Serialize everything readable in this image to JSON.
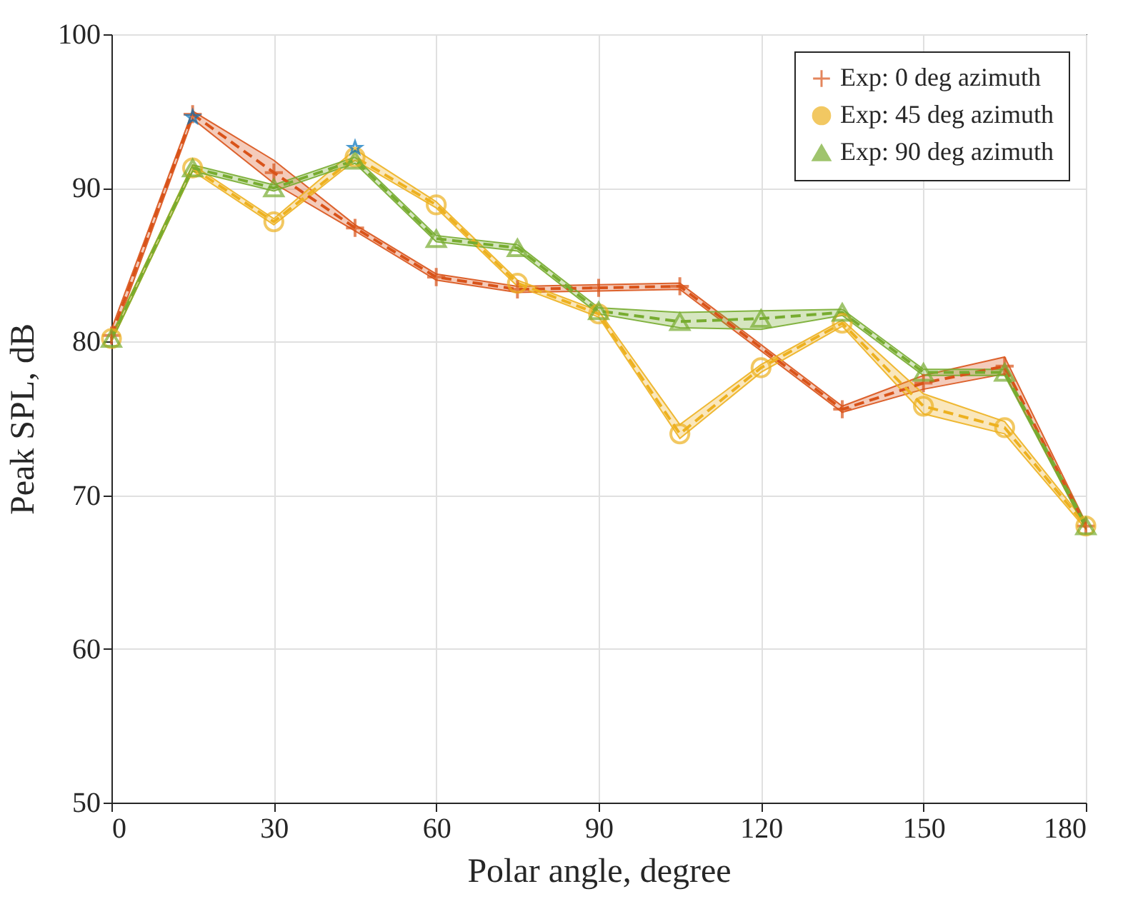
{
  "chart_data": {
    "type": "line",
    "xlabel": "Polar angle, degree",
    "ylabel": "Peak SPL, dB",
    "x": [
      0,
      15,
      30,
      45,
      60,
      75,
      90,
      105,
      120,
      135,
      150,
      165,
      180
    ],
    "series": [
      {
        "name": "Exp: 0 deg azimuth",
        "color": "#d95319",
        "marker": "cross",
        "x": [
          0,
          15,
          30,
          45,
          60,
          75,
          90,
          105,
          135,
          150,
          165,
          180
        ],
        "values": [
          80.4,
          94.8,
          91.0,
          87.4,
          84.2,
          83.4,
          83.5,
          83.6,
          75.6,
          77.3,
          78.4,
          68.0
        ],
        "lower": [
          80.0,
          94.5,
          90.3,
          87.2,
          84.0,
          83.2,
          83.3,
          83.4,
          75.4,
          76.9,
          77.9,
          67.8
        ],
        "upper": [
          80.8,
          95.0,
          91.8,
          87.6,
          84.4,
          83.6,
          83.7,
          83.8,
          75.8,
          77.8,
          79.0,
          68.2
        ]
      },
      {
        "name": "Exp: 45 deg azimuth",
        "color": "#edb120",
        "marker": "circle",
        "values": [
          80.2,
          91.3,
          87.8,
          92.0,
          88.9,
          83.8,
          81.8,
          74.0,
          78.3,
          81.2,
          75.8,
          74.4,
          68.0
        ],
        "lower": [
          80.0,
          91.1,
          87.6,
          91.8,
          88.7,
          83.6,
          81.6,
          73.7,
          78.0,
          81.0,
          75.3,
          74.0,
          67.8
        ],
        "upper": [
          80.4,
          91.5,
          88.0,
          92.5,
          89.1,
          84.0,
          82.0,
          74.6,
          78.5,
          81.4,
          76.6,
          74.8,
          68.2
        ]
      },
      {
        "name": "Exp: 90 deg azimuth",
        "color": "#77ac30",
        "marker": "triangle",
        "values": [
          80.2,
          91.3,
          90.0,
          91.8,
          86.7,
          86.1,
          82.0,
          81.3,
          81.5,
          81.9,
          78.0,
          78.0,
          68.0
        ],
        "lower": [
          80.0,
          91.1,
          89.8,
          91.6,
          86.5,
          85.9,
          81.8,
          80.9,
          80.8,
          81.7,
          77.8,
          77.8,
          67.8
        ],
        "upper": [
          80.4,
          91.5,
          90.2,
          92.0,
          86.9,
          86.3,
          82.2,
          81.9,
          82.0,
          82.1,
          78.2,
          78.2,
          68.2
        ]
      },
      {
        "type": "scatter",
        "color": "#0072bd",
        "marker": "star",
        "x": [
          15,
          45
        ],
        "values": [
          94.6,
          92.6
        ]
      }
    ],
    "xlim": [
      0,
      180
    ],
    "xticks": [
      0,
      30,
      60,
      90,
      120,
      150,
      180
    ],
    "ylim": [
      50,
      100
    ],
    "yticks": [
      50,
      60,
      70,
      80,
      90,
      100
    ],
    "grid": true,
    "legend": "top right",
    "line_style": "dashed"
  }
}
